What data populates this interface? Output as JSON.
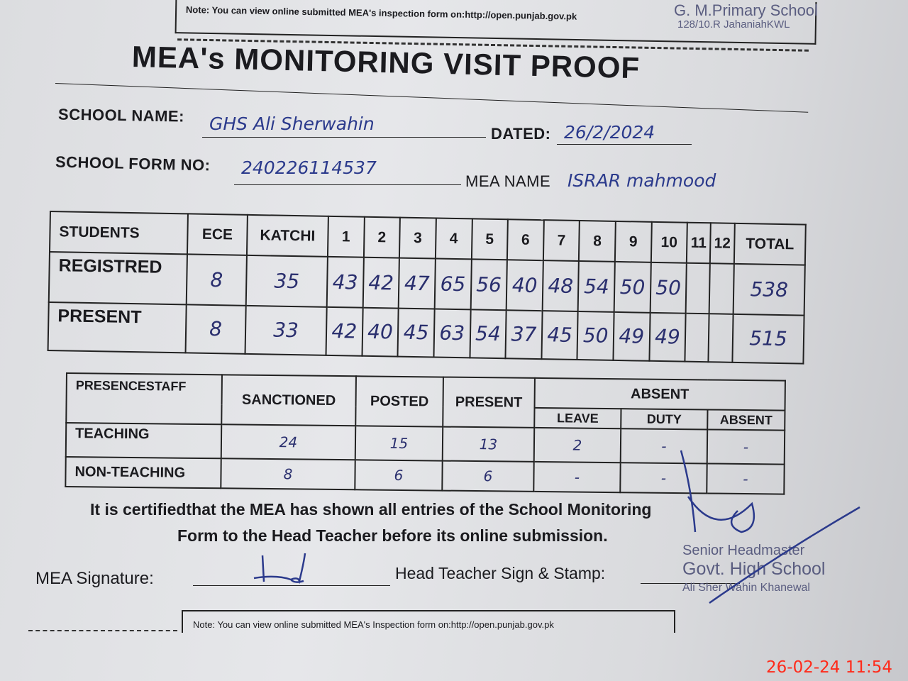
{
  "top_note": "Note: You can view online submitted MEA's inspection form on:http://open.punjab.gov.pk",
  "top_stamp": {
    "line1": "G. M.Primary School",
    "line2": "128/10.R JahaniahKWL"
  },
  "title": "MEA's MONITORING VISIT PROOF",
  "fields": {
    "school_name_label": "SCHOOL NAME:",
    "school_name_value": "GHS Ali Sherwahin",
    "dated_label": "DATED:",
    "dated_value": "26/2/2024",
    "form_no_label": "SCHOOL FORM NO:",
    "form_no_value": "240226114537",
    "mea_name_label": "MEA NAME",
    "mea_name_value": "ISRAR mahmood"
  },
  "students_table": {
    "headers": [
      "STUDENTS",
      "ECE",
      "KATCHI",
      "1",
      "2",
      "3",
      "4",
      "5",
      "6",
      "7",
      "8",
      "9",
      "10",
      "11",
      "12",
      "TOTAL"
    ],
    "rows": [
      {
        "label": "REGISTRED",
        "values": [
          "8",
          "35",
          "43",
          "42",
          "47",
          "65",
          "56",
          "40",
          "48",
          "54",
          "50",
          "50",
          "",
          "",
          "538"
        ]
      },
      {
        "label": "PRESENT",
        "values": [
          "8",
          "33",
          "42",
          "40",
          "45",
          "63",
          "54",
          "37",
          "45",
          "50",
          "49",
          "49",
          "",
          "",
          "515"
        ]
      }
    ]
  },
  "staff_table": {
    "headers": [
      "PRESENCESTAFF",
      "SANCTIONED",
      "POSTED",
      "PRESENT",
      "ABSENT"
    ],
    "absent_sub": [
      "LEAVE",
      "DUTY",
      "ABSENT"
    ],
    "rows": [
      {
        "label": "TEACHING",
        "values": [
          "24",
          "15",
          "13",
          "2",
          "-",
          "-"
        ]
      },
      {
        "label": "NON-TEACHING",
        "values": [
          "8",
          "6",
          "6",
          "-",
          "-",
          "-"
        ]
      }
    ]
  },
  "certification": {
    "line1": "It is certifiedthat the MEA has shown all entries of the School Monitoring",
    "line2": "Form to the Head Teacher before its online submission."
  },
  "signatures": {
    "mea_label": "MEA Signature:",
    "head_label": "Head Teacher Sign & Stamp:"
  },
  "stamp": {
    "line1": "Senior Headmaster",
    "line2": "Govt. High School",
    "line3": "Ali Sher Wahin Khanewal"
  },
  "bottom_note": "Note: You can view online submitted MEA's Inspection form on:http://open.punjab.gov.pk",
  "timestamp": "26-02-24  11:54"
}
